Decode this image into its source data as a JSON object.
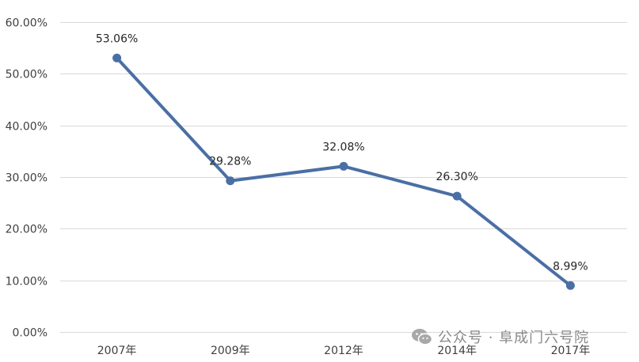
{
  "chart_data": {
    "type": "line",
    "title": "",
    "xlabel": "",
    "ylabel": "",
    "categories": [
      "2007年",
      "2009年",
      "2012年",
      "2014年",
      "2017年"
    ],
    "series": [
      {
        "values": [
          53.06,
          29.28,
          32.08,
          26.3,
          8.99
        ],
        "data_labels": [
          "53.06%",
          "29.28%",
          "32.08%",
          "26.30%",
          "8.99%"
        ],
        "color": "#4a6fa5"
      }
    ],
    "ylim": [
      0,
      60
    ],
    "yticks": [
      0,
      10,
      20,
      30,
      40,
      50,
      60
    ],
    "ytick_labels": [
      "0.00%",
      "10.00%",
      "20.00%",
      "30.00%",
      "40.00%",
      "50.00%",
      "60.00%"
    ],
    "grid": true,
    "legend": "none"
  },
  "watermark": {
    "icon": "wechat-icon",
    "text": "公众号 · 阜成门六号院"
  }
}
